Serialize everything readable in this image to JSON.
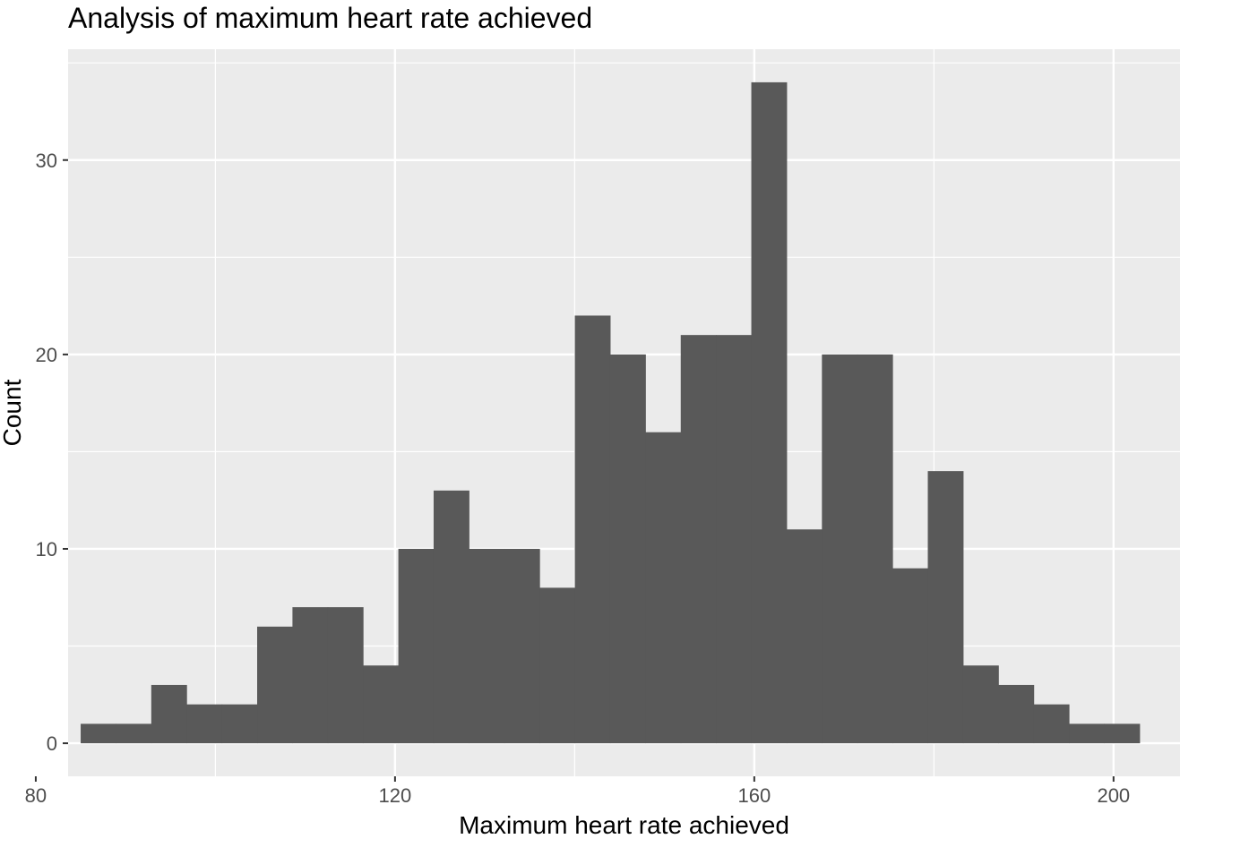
{
  "chart_data": {
    "type": "bar",
    "title": "Analysis of maximum heart rate achieved",
    "xlabel": "Maximum heart rate achieved",
    "ylabel": "Count",
    "xlim": [
      83.6,
      207.4
    ],
    "ylim": [
      -1.7,
      35.7
    ],
    "xticks": [
      80,
      120,
      160,
      200
    ],
    "xtick_labels": [
      "80",
      "120",
      "160",
      "200"
    ],
    "yticks": [
      0,
      10,
      20,
      30
    ],
    "ytick_labels": [
      "0",
      "10",
      "20",
      "30"
    ],
    "bin_width": 3.93,
    "bin_start": 85.0,
    "values": [
      1,
      1,
      3,
      2,
      2,
      6,
      7,
      7,
      4,
      10,
      13,
      10,
      10,
      8,
      22,
      20,
      16,
      21,
      21,
      34,
      11,
      20,
      20,
      9,
      14,
      4,
      3,
      2,
      1,
      1
    ],
    "grid": true,
    "colors": {
      "bar": "#595959",
      "panel": "#ebebeb",
      "grid": "#ffffff"
    }
  }
}
